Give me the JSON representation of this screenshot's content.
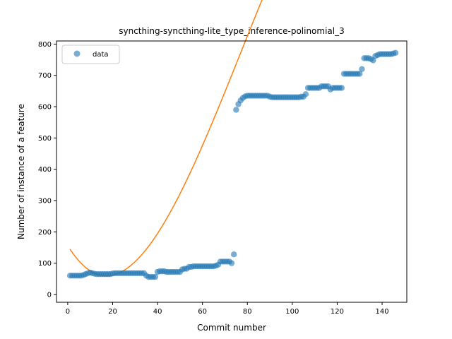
{
  "chart_data": {
    "type": "scatter",
    "title": "syncthing-syncthing-lite_type_inference-polinomial_3",
    "xlabel": "Commit number",
    "ylabel": "Number of instance of a feature",
    "xlim": [
      -5,
      151
    ],
    "ylim": [
      -25,
      810
    ],
    "x_ticks": [
      "0",
      "20",
      "40",
      "60",
      "80",
      "100",
      "120",
      "140"
    ],
    "y_ticks": [
      "0",
      "100",
      "200",
      "300",
      "400",
      "500",
      "600",
      "700",
      "800"
    ],
    "legend": {
      "position": "upper-left",
      "entries": [
        "data"
      ]
    },
    "colors": {
      "data": "#1f77b4",
      "fit": "#ff7f0e"
    },
    "series": [
      {
        "name": "data",
        "kind": "scatter",
        "x": [
          1,
          2,
          3,
          4,
          5,
          6,
          7,
          8,
          9,
          10,
          11,
          12,
          13,
          14,
          15,
          16,
          17,
          18,
          19,
          20,
          21,
          22,
          23,
          24,
          25,
          26,
          27,
          28,
          29,
          30,
          31,
          32,
          33,
          34,
          35,
          36,
          37,
          38,
          39,
          40,
          41,
          42,
          43,
          44,
          45,
          46,
          47,
          48,
          49,
          50,
          51,
          52,
          53,
          54,
          55,
          56,
          57,
          58,
          59,
          60,
          61,
          62,
          63,
          64,
          65,
          66,
          67,
          68,
          69,
          70,
          71,
          72,
          73,
          74,
          75,
          76,
          77,
          78,
          79,
          80,
          81,
          82,
          83,
          84,
          85,
          86,
          87,
          88,
          89,
          90,
          91,
          92,
          93,
          94,
          95,
          96,
          97,
          98,
          99,
          100,
          101,
          102,
          103,
          104,
          105,
          106,
          107,
          108,
          109,
          110,
          111,
          112,
          113,
          114,
          115,
          116,
          117,
          118,
          119,
          120,
          121,
          122,
          123,
          124,
          125,
          126,
          127,
          128,
          129,
          130,
          131,
          132,
          133,
          134,
          135,
          136,
          137,
          138,
          139,
          140,
          141,
          142,
          143,
          144,
          145,
          146
        ],
        "y": [
          60,
          60,
          60,
          60,
          60,
          60,
          62,
          65,
          68,
          70,
          68,
          66,
          65,
          65,
          65,
          65,
          65,
          65,
          65,
          67,
          68,
          68,
          68,
          68,
          68,
          68,
          68,
          68,
          68,
          68,
          68,
          68,
          68,
          68,
          60,
          56,
          56,
          56,
          56,
          72,
          74,
          74,
          74,
          72,
          72,
          72,
          72,
          72,
          72,
          72,
          80,
          82,
          82,
          88,
          88,
          90,
          90,
          90,
          90,
          90,
          90,
          90,
          90,
          90,
          90,
          92,
          95,
          105,
          105,
          105,
          105,
          105,
          100,
          128,
          590,
          608,
          620,
          628,
          633,
          635,
          635,
          635,
          635,
          635,
          635,
          635,
          635,
          635,
          635,
          632,
          630,
          630,
          630,
          630,
          630,
          630,
          630,
          630,
          630,
          630,
          630,
          630,
          630,
          632,
          632,
          640,
          660,
          660,
          660,
          660,
          660,
          660,
          665,
          665,
          665,
          665,
          655,
          660,
          660,
          660,
          660,
          660,
          705,
          705,
          705,
          705,
          705,
          705,
          705,
          705,
          720,
          755,
          755,
          755,
          752,
          748,
          762,
          765,
          768,
          768,
          768,
          768,
          768,
          768,
          770,
          772
        ]
      },
      {
        "name": "",
        "kind": "line",
        "coefficients": [
          156.4,
          -11.75,
          0.384,
          -0.001657
        ]
      }
    ]
  }
}
